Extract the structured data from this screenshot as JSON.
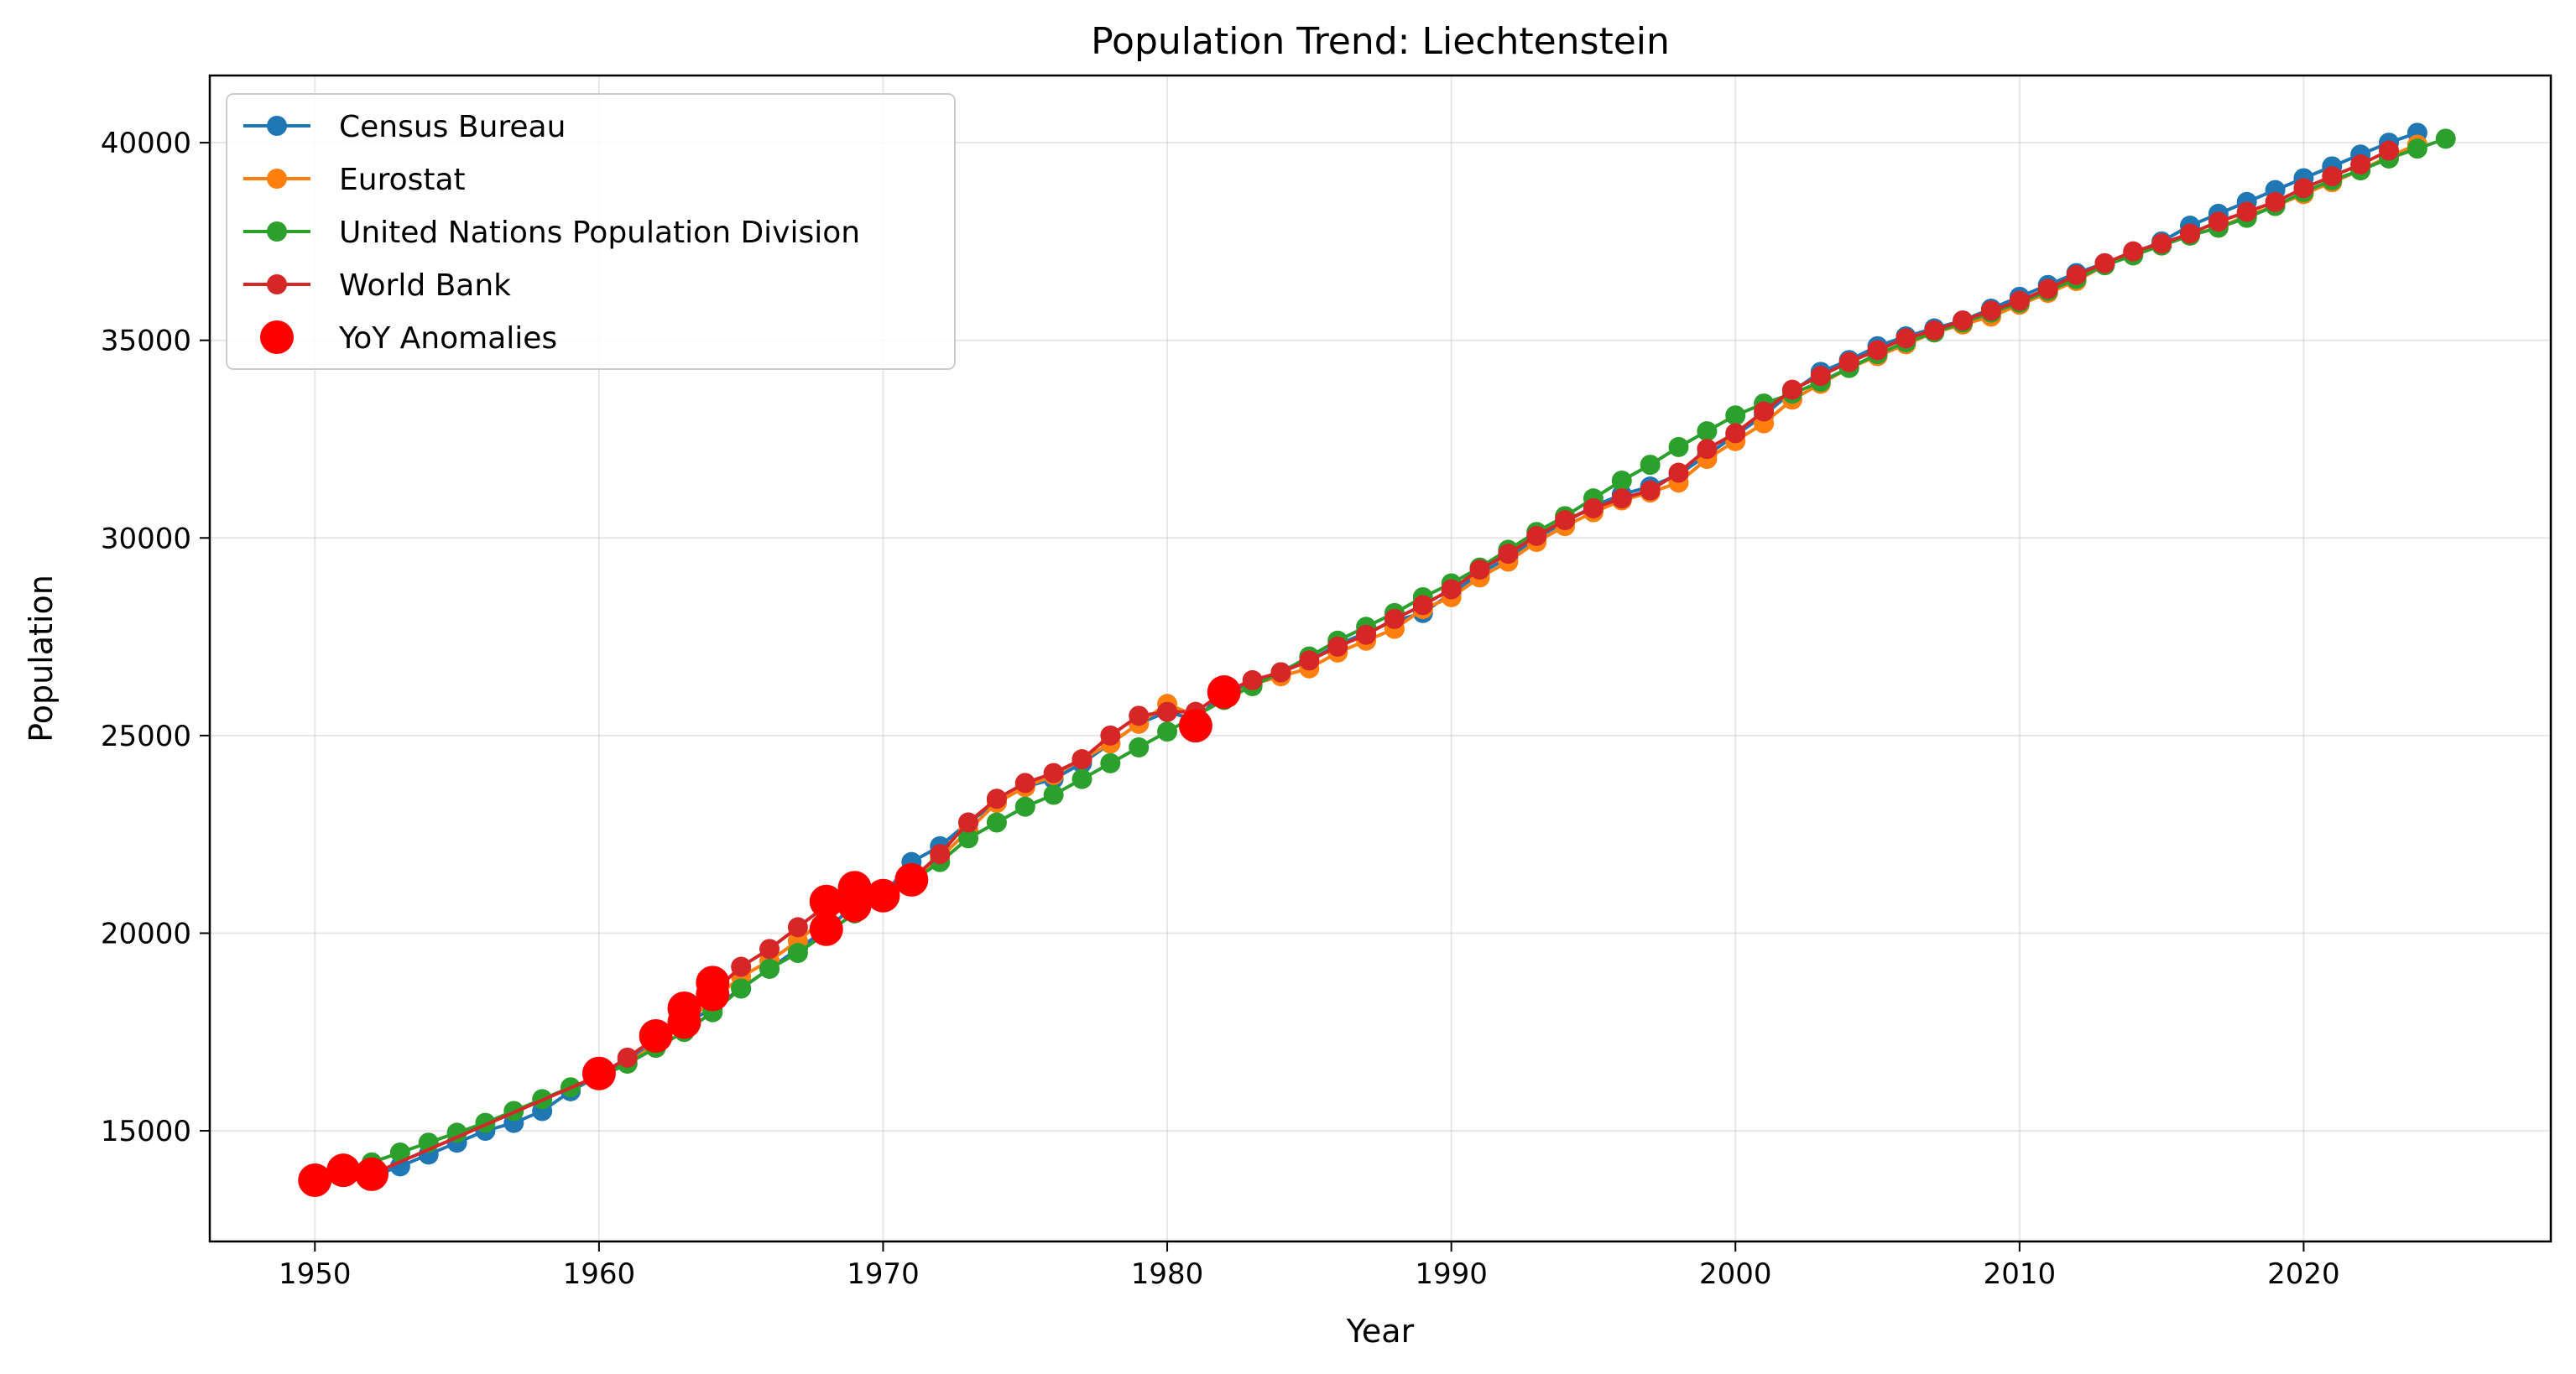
{
  "chart_data": {
    "type": "line",
    "title": "Population Trend: Liechtenstein",
    "xlabel": "Year",
    "ylabel": "Population",
    "xlim": [
      1946.3,
      2028.7
    ],
    "ylim": [
      12200,
      41700
    ],
    "x_ticks": [
      1950,
      1960,
      1970,
      1980,
      1990,
      2000,
      2010,
      2020
    ],
    "y_ticks": [
      15000,
      20000,
      25000,
      30000,
      35000,
      40000
    ],
    "grid": true,
    "legend_position": "top-left",
    "series": [
      {
        "name": "Census Bureau",
        "color": "#1f77b4",
        "x": [
          1950,
          1951,
          1952,
          1953,
          1954,
          1955,
          1956,
          1957,
          1958,
          1959,
          1960,
          1961,
          1962,
          1963,
          1964,
          1965,
          1966,
          1967,
          1968,
          1969,
          1970,
          1971,
          1972,
          1973,
          1974,
          1975,
          1976,
          1977,
          1978,
          1979,
          1980,
          1981,
          1982,
          1983,
          1984,
          1985,
          1986,
          1987,
          1988,
          1989,
          1990,
          1991,
          1992,
          1993,
          1994,
          1995,
          1996,
          1997,
          1998,
          1999,
          2000,
          2001,
          2002,
          2003,
          2004,
          2005,
          2006,
          2007,
          2008,
          2009,
          2010,
          2011,
          2012,
          2013,
          2014,
          2015,
          2016,
          2017,
          2018,
          2019,
          2020,
          2021,
          2022,
          2023,
          2024
        ],
        "y": [
          13600,
          13900,
          13850,
          14100,
          14400,
          14700,
          15000,
          15200,
          15500,
          16000,
          16400,
          16800,
          17200,
          17700,
          18100,
          18600,
          19100,
          19600,
          20100,
          20700,
          20950,
          21800,
          22200,
          22800,
          23300,
          23700,
          23900,
          24300,
          24800,
          25300,
          25600,
          25400,
          26100,
          26300,
          26600,
          26900,
          27300,
          27600,
          27900,
          28100,
          28600,
          29100,
          29500,
          30000,
          30400,
          30800,
          31100,
          31300,
          31600,
          32100,
          32600,
          33100,
          33700,
          34200,
          34500,
          34850,
          35100,
          35300,
          35500,
          35800,
          36100,
          36400,
          36700,
          36950,
          37200,
          37500,
          37900,
          38200,
          38500,
          38800,
          39100,
          39400,
          39700,
          40000,
          40250
        ]
      },
      {
        "name": "Eurostat",
        "color": "#ff7f0e",
        "x": [
          1961,
          1962,
          1963,
          1964,
          1965,
          1966,
          1967,
          1968,
          1969,
          1970,
          1971,
          1972,
          1973,
          1974,
          1975,
          1976,
          1977,
          1978,
          1979,
          1980,
          1981,
          1982,
          1983,
          1984,
          1985,
          1986,
          1987,
          1988,
          1989,
          1990,
          1991,
          1992,
          1993,
          1994,
          1995,
          1996,
          1997,
          1998,
          1999,
          2000,
          2001,
          2002,
          2003,
          2004,
          2005,
          2006,
          2007,
          2008,
          2009,
          2010,
          2011,
          2012,
          2013,
          2014,
          2015,
          2016,
          2017,
          2018,
          2019,
          2020,
          2021,
          2022,
          2023,
          2024
        ],
        "y": [
          16700,
          17200,
          17700,
          18300,
          18900,
          19300,
          19800,
          20400,
          20800,
          21000,
          21400,
          21900,
          22600,
          23300,
          23700,
          24000,
          24400,
          24800,
          25300,
          25800,
          25500,
          25900,
          26300,
          26500,
          26700,
          27100,
          27400,
          27700,
          28200,
          28500,
          29000,
          29400,
          29900,
          30300,
          30650,
          30950,
          31150,
          31400,
          32000,
          32450,
          32900,
          33500,
          33900,
          34300,
          34600,
          34900,
          35200,
          35400,
          35600,
          35900,
          36200,
          36500,
          36900,
          37150,
          37400,
          37650,
          37850,
          38150,
          38400,
          38700,
          39000,
          39300,
          39650,
          39950
        ]
      },
      {
        "name": "United Nations Population Division",
        "color": "#2ca02c",
        "x": [
          1950,
          1951,
          1952,
          1953,
          1954,
          1955,
          1956,
          1957,
          1958,
          1959,
          1960,
          1961,
          1962,
          1963,
          1964,
          1965,
          1966,
          1967,
          1968,
          1969,
          1970,
          1971,
          1972,
          1973,
          1974,
          1975,
          1976,
          1977,
          1978,
          1979,
          1980,
          1981,
          1982,
          1983,
          1984,
          1985,
          1986,
          1987,
          1988,
          1989,
          1990,
          1991,
          1992,
          1993,
          1994,
          1995,
          1996,
          1997,
          1998,
          1999,
          2000,
          2001,
          2002,
          2003,
          2004,
          2005,
          2006,
          2007,
          2008,
          2009,
          2010,
          2011,
          2012,
          2013,
          2014,
          2015,
          2016,
          2017,
          2018,
          2019,
          2020,
          2021,
          2022,
          2023,
          2024,
          2025
        ],
        "y": [
          13700,
          13950,
          14200,
          14450,
          14700,
          14950,
          15200,
          15500,
          15800,
          16100,
          16350,
          16700,
          17100,
          17500,
          18000,
          18600,
          19100,
          19500,
          20000,
          20500,
          20900,
          21300,
          21800,
          22400,
          22800,
          23200,
          23500,
          23900,
          24300,
          24700,
          25100,
          25500,
          25900,
          26250,
          26600,
          27000,
          27400,
          27750,
          28100,
          28500,
          28850,
          29250,
          29700,
          30150,
          30550,
          31000,
          31450,
          31850,
          32300,
          32700,
          33100,
          33400,
          33650,
          33950,
          34300,
          34650,
          34950,
          35200,
          35450,
          35700,
          35950,
          36250,
          36550,
          36900,
          37150,
          37400,
          37650,
          37850,
          38100,
          38400,
          38750,
          39050,
          39300,
          39600,
          39850,
          40100
        ]
      },
      {
        "name": "World Bank",
        "color": "#d62728",
        "x": [
          1950,
          1951,
          1952,
          1960,
          1961,
          1962,
          1963,
          1964,
          1965,
          1966,
          1967,
          1968,
          1969,
          1970,
          1971,
          1972,
          1973,
          1974,
          1975,
          1976,
          1977,
          1978,
          1979,
          1980,
          1981,
          1982,
          1983,
          1984,
          1985,
          1986,
          1987,
          1988,
          1989,
          1990,
          1991,
          1992,
          1993,
          1994,
          1995,
          1996,
          1997,
          1998,
          1999,
          2000,
          2001,
          2002,
          2003,
          2004,
          2005,
          2006,
          2007,
          2008,
          2009,
          2010,
          2011,
          2012,
          2013,
          2014,
          2015,
          2016,
          2017,
          2018,
          2019,
          2020,
          2021,
          2022,
          2023
        ],
        "y": [
          13750,
          13950,
          13900,
          16400,
          16850,
          17350,
          17900,
          18500,
          19150,
          19600,
          20150,
          20700,
          21100,
          20950,
          21350,
          22000,
          22800,
          23400,
          23800,
          24050,
          24400,
          25000,
          25500,
          25600,
          25600,
          26100,
          26400,
          26600,
          26900,
          27250,
          27550,
          27950,
          28300,
          28700,
          29200,
          29600,
          30050,
          30450,
          30750,
          31000,
          31200,
          31650,
          32250,
          32650,
          33200,
          33750,
          34100,
          34450,
          34750,
          35050,
          35250,
          35500,
          35750,
          36000,
          36300,
          36650,
          36950,
          37250,
          37450,
          37700,
          38000,
          38250,
          38500,
          38850,
          39150,
          39450,
          39800
        ]
      }
    ],
    "anomalies": {
      "name": "YoY Anomalies",
      "color": "#ff0000",
      "x": [
        1950,
        1951,
        1952,
        1960,
        1962,
        1963,
        1963,
        1964,
        1964,
        1968,
        1968,
        1969,
        1969,
        1970,
        1971,
        1981,
        1982
      ],
      "y": [
        13750,
        14000,
        13900,
        16450,
        17400,
        17750,
        18100,
        18450,
        18750,
        20100,
        20800,
        20700,
        21150,
        20950,
        21350,
        25250,
        26100
      ]
    }
  }
}
